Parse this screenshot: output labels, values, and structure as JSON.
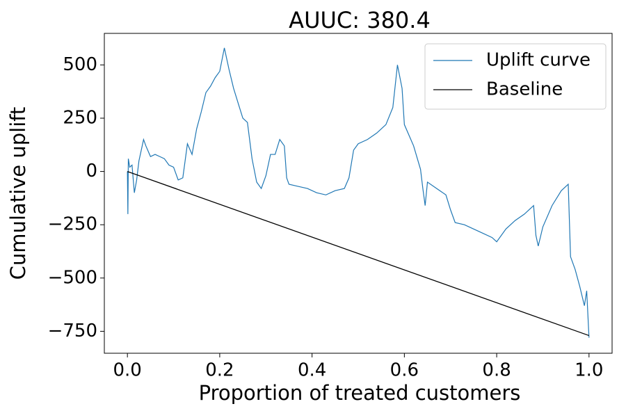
{
  "chart_data": {
    "type": "line",
    "title": "AUUC: 380.4",
    "xlabel": "Proportion of treated customers",
    "ylabel": "Cumulative uplift",
    "xlim": [
      -0.05,
      1.05
    ],
    "ylim": [
      -853,
      648
    ],
    "xticks": [
      {
        "value": 0,
        "label": "0.0"
      },
      0.2,
      0.4,
      0.6,
      0.8,
      {
        "value": 1,
        "label": "1.0"
      }
    ],
    "yticks": [
      {
        "value": -750,
        "label": "−750"
      },
      {
        "value": -500,
        "label": "−500"
      },
      {
        "value": -250,
        "label": "−250"
      },
      0,
      250,
      500
    ],
    "grid": false,
    "legend": "upper right",
    "series": [
      {
        "name": "Uplift curve",
        "color": "#1f77b4",
        "x": [
          0.0,
          0.001,
          0.002,
          0.005,
          0.01,
          0.015,
          0.02,
          0.025,
          0.03,
          0.035,
          0.04,
          0.05,
          0.06,
          0.07,
          0.08,
          0.09,
          0.1,
          0.11,
          0.12,
          0.13,
          0.14,
          0.15,
          0.16,
          0.17,
          0.18,
          0.19,
          0.2,
          0.21,
          0.22,
          0.23,
          0.24,
          0.25,
          0.26,
          0.27,
          0.28,
          0.29,
          0.3,
          0.31,
          0.32,
          0.33,
          0.34,
          0.345,
          0.35,
          0.37,
          0.39,
          0.41,
          0.43,
          0.45,
          0.47,
          0.48,
          0.49,
          0.5,
          0.52,
          0.54,
          0.56,
          0.575,
          0.585,
          0.595,
          0.6,
          0.62,
          0.635,
          0.64,
          0.645,
          0.65,
          0.67,
          0.69,
          0.7,
          0.71,
          0.73,
          0.75,
          0.77,
          0.79,
          0.8,
          0.82,
          0.84,
          0.86,
          0.88,
          0.885,
          0.89,
          0.9,
          0.92,
          0.94,
          0.955,
          0.96,
          0.97,
          0.98,
          0.99,
          0.995,
          1.0
        ],
        "values": [
          0,
          -200,
          60,
          20,
          30,
          -100,
          -40,
          50,
          100,
          150,
          120,
          70,
          80,
          70,
          60,
          30,
          20,
          -40,
          -30,
          130,
          80,
          200,
          280,
          370,
          400,
          440,
          470,
          580,
          480,
          390,
          320,
          250,
          230,
          60,
          -50,
          -80,
          -20,
          80,
          80,
          150,
          120,
          -30,
          -60,
          -70,
          -80,
          -100,
          -110,
          -90,
          -80,
          -30,
          100,
          130,
          150,
          180,
          220,
          300,
          500,
          390,
          220,
          120,
          10,
          -80,
          -160,
          -50,
          -80,
          -110,
          -180,
          -240,
          -250,
          -270,
          -290,
          -310,
          -330,
          -270,
          -230,
          -200,
          -160,
          -300,
          -350,
          -260,
          -160,
          -90,
          -60,
          -400,
          -460,
          -540,
          -630,
          -560,
          -780
        ]
      },
      {
        "name": "Baseline",
        "color": "#000000",
        "x": [
          0,
          1
        ],
        "values": [
          0,
          -770
        ]
      }
    ]
  }
}
